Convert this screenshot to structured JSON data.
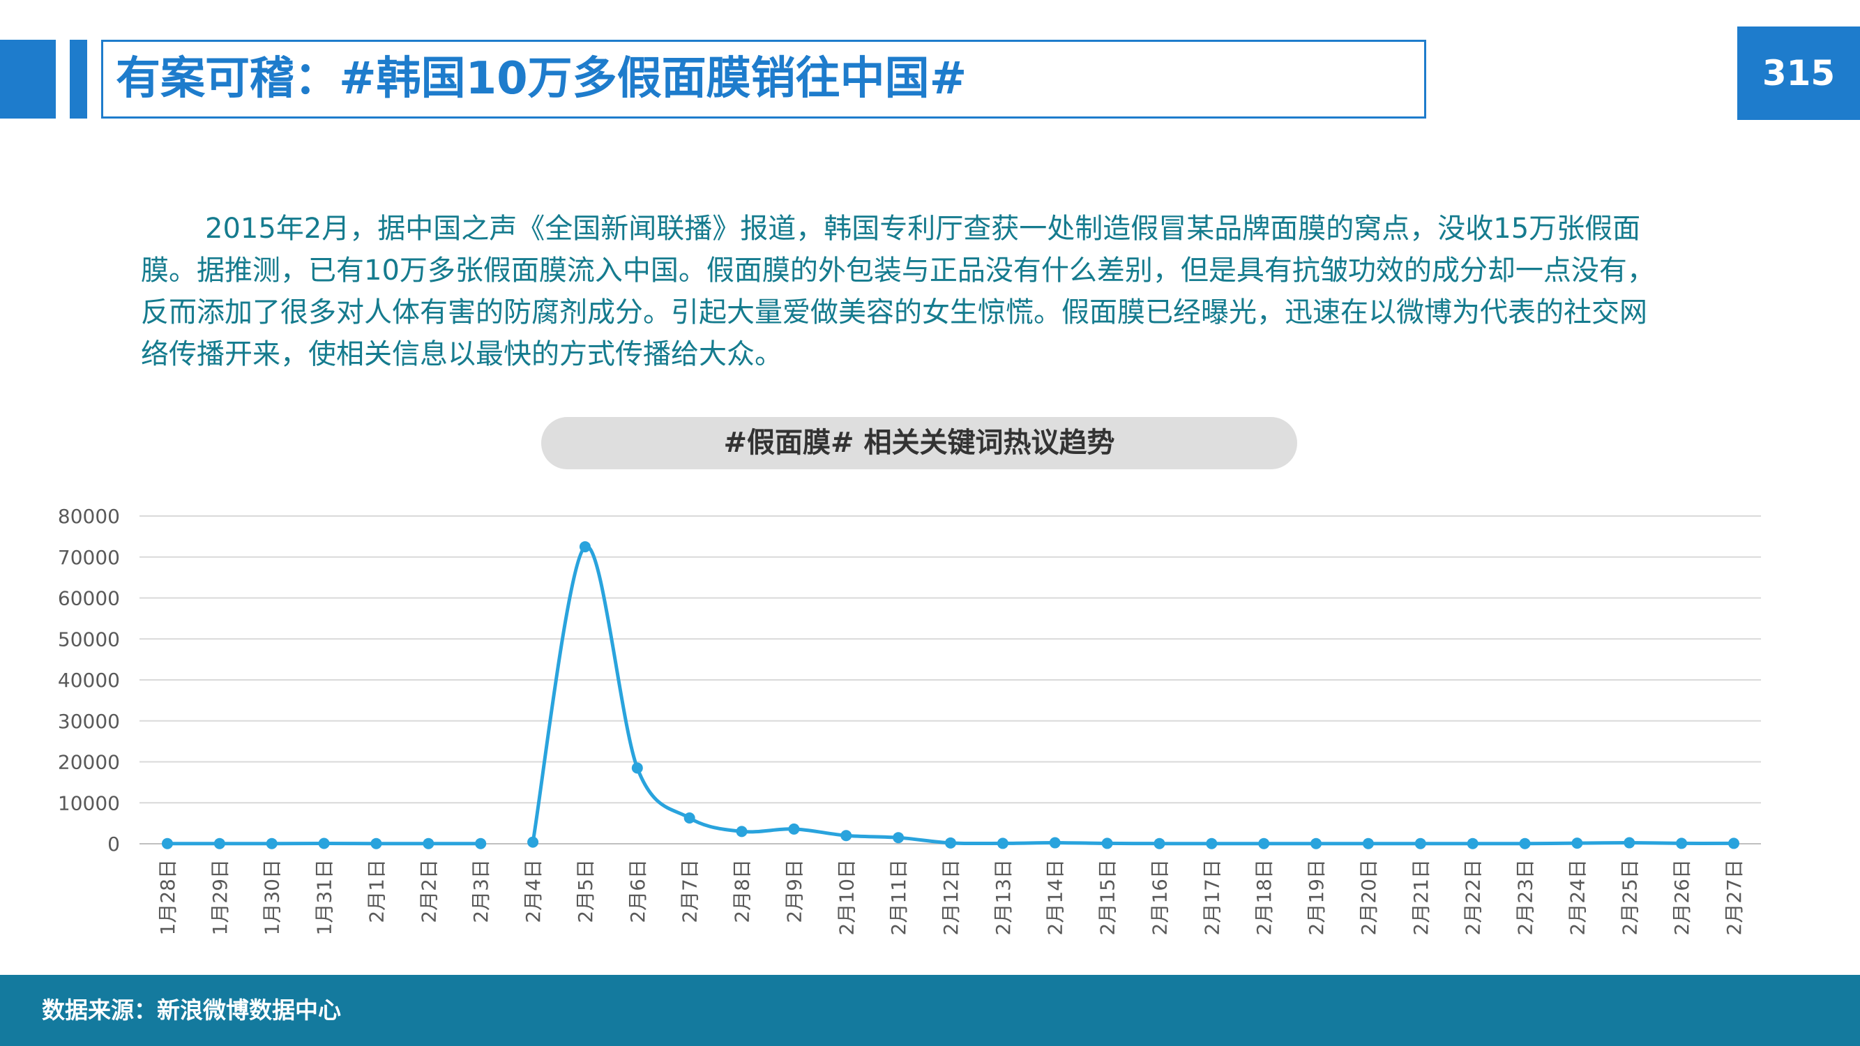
{
  "header": {
    "title": "有案可稽：#韩国10万多假面膜销往中国#",
    "page_number": "315"
  },
  "body": {
    "paragraph": "2015年2月，据中国之声《全国新闻联播》报道，韩国专利厅查获一处制造假冒某品牌面膜的窝点，没收15万张假面膜。据推测，已有10万多张假面膜流入中国。假面膜的外包装与正品没有什么差别，但是具有抗皱功效的成分却一点没有，反而添加了很多对人体有害的防腐剂成分。引起大量爱做美容的女生惊慌。假面膜已经曝光，迅速在以微博为代表的社交网络传播开来，使相关信息以最快的方式传播给大众。"
  },
  "footer": {
    "source": "数据来源：新浪微博数据中心"
  },
  "colors": {
    "accent": "#1e7ccc",
    "line": "#29a3dd",
    "footer": "#147a9e",
    "text": "#157b8e"
  },
  "chart_data": {
    "type": "line",
    "title": "#假面膜#  相关关键词热议趋势",
    "xlabel": "",
    "ylabel": "",
    "ylim": [
      0,
      80000
    ],
    "yticks": [
      0,
      10000,
      20000,
      30000,
      40000,
      50000,
      60000,
      70000,
      80000
    ],
    "grid": true,
    "legend": "none",
    "categories": [
      "1月28日",
      "1月29日",
      "1月30日",
      "1月31日",
      "2月1日",
      "2月2日",
      "2月3日",
      "2月4日",
      "2月5日",
      "2月6日",
      "2月7日",
      "2月8日",
      "2月9日",
      "2月10日",
      "2月11日",
      "2月12日",
      "2月13日",
      "2月14日",
      "2月15日",
      "2月16日",
      "2月17日",
      "2月18日",
      "2月19日",
      "2月20日",
      "2月21日",
      "2月22日",
      "2月23日",
      "2月24日",
      "2月25日",
      "2月26日",
      "2月27日"
    ],
    "series": [
      {
        "values": [
          50,
          50,
          50,
          80,
          50,
          50,
          50,
          null,
          72500,
          18500,
          6300,
          3000,
          3600,
          2000,
          1500,
          200,
          100,
          250,
          100,
          50,
          50,
          50,
          50,
          50,
          50,
          50,
          50,
          150,
          250,
          100,
          100
        ],
        "segment_start_value": 400
      }
    ]
  }
}
